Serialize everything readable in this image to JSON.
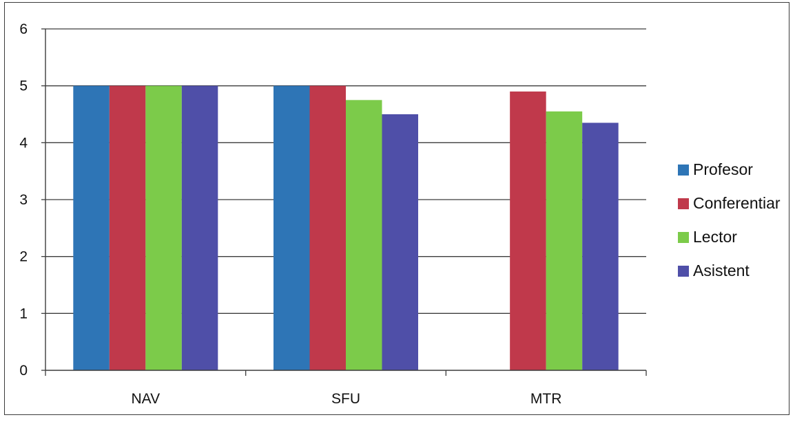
{
  "chart_data": {
    "type": "bar",
    "categories": [
      "NAV",
      "SFU",
      "MTR"
    ],
    "series": [
      {
        "name": "Profesor",
        "values": [
          5,
          5,
          null
        ],
        "color": "#2e75b6"
      },
      {
        "name": "Conferentiar",
        "values": [
          5,
          5,
          4.9
        ],
        "color": "#c0394b"
      },
      {
        "name": "Lector",
        "values": [
          5,
          4.75,
          4.55
        ],
        "color": "#7ccb4a"
      },
      {
        "name": "Asistent",
        "values": [
          5,
          4.5,
          4.35
        ],
        "color": "#4f4fa8"
      }
    ],
    "ylim": [
      0,
      6
    ],
    "yticks": [
      0,
      1,
      2,
      3,
      4,
      5,
      6
    ],
    "grid": true,
    "legend_position": "right"
  }
}
